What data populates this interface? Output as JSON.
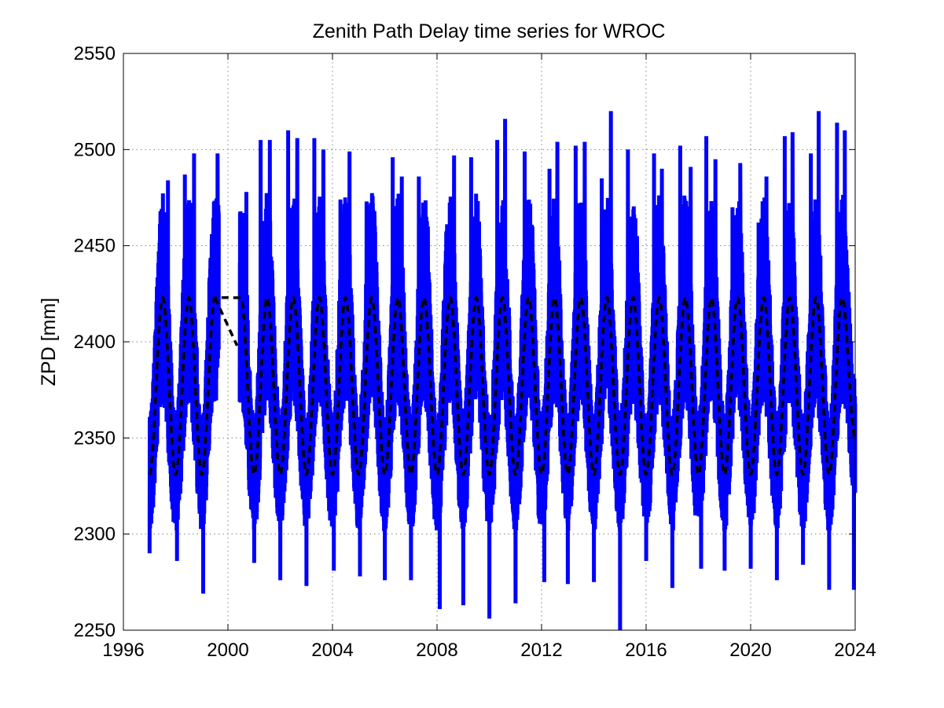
{
  "chart_data": {
    "type": "line",
    "title": "Zenith Path Delay time series for WROC",
    "xlabel": "",
    "ylabel": "ZPD [mm]",
    "xlim": [
      1996,
      2024
    ],
    "ylim": [
      2250,
      2550
    ],
    "xticks": [
      1996,
      2000,
      2004,
      2008,
      2012,
      2016,
      2020,
      2024
    ],
    "yticks": [
      2250,
      2300,
      2350,
      2400,
      2450,
      2500,
      2550
    ],
    "grid": true,
    "legend": "none",
    "colors": {
      "observed": "#0000ff",
      "model": "#000000"
    },
    "series": [
      {
        "style": "solid",
        "color": "#0000ff",
        "x": [
          1997.0,
          1997.35,
          1997.7,
          1998.05,
          1998.35,
          1998.7,
          1999.05,
          1999.35,
          1999.6,
          2000.5,
          2000.7,
          2001.0,
          2001.25,
          2001.6,
          2002.0,
          2002.3,
          2002.65,
          2003.0,
          2003.3,
          2003.65,
          2004.05,
          2004.3,
          2004.65,
          2005.05,
          2005.3,
          2005.6,
          2006.0,
          2006.3,
          2006.65,
          2007.0,
          2007.3,
          2007.65,
          2008.1,
          2008.35,
          2008.65,
          2009.0,
          2009.3,
          2009.6,
          2010.0,
          2010.3,
          2010.6,
          2011.0,
          2011.35,
          2011.65,
          2012.1,
          2012.3,
          2012.6,
          2013.0,
          2013.3,
          2013.65,
          2014.0,
          2014.3,
          2014.65,
          2015.0,
          2015.3,
          2015.65,
          2016.0,
          2016.3,
          2016.6,
          2017.0,
          2017.3,
          2017.7,
          2018.1,
          2018.3,
          2018.65,
          2019.0,
          2019.3,
          2019.6,
          2020.0,
          2020.3,
          2020.6,
          2021.0,
          2021.3,
          2021.6,
          2022.0,
          2022.3,
          2022.6,
          2023.0,
          2023.3,
          2023.6,
          2023.95
        ],
        "y": [
          2290,
          2447,
          2484,
          2286,
          2487,
          2498,
          2269,
          2433,
          2498,
          2371,
          2478,
          2285,
          2505,
          2505,
          2276,
          2510,
          2506,
          2273,
          2506,
          2500,
          2281,
          2474,
          2499,
          2278,
          2473,
          2468,
          2276,
          2496,
          2486,
          2276,
          2486,
          2460,
          2261,
          2457,
          2497,
          2263,
          2496,
          2457,
          2256,
          2505,
          2516,
          2264,
          2499,
          2460,
          2275,
          2490,
          2504,
          2274,
          2502,
          2504,
          2275,
          2485,
          2520,
          2250,
          2500,
          2455,
          2286,
          2498,
          2490,
          2272,
          2502,
          2491,
          2282,
          2507,
          2495,
          2281,
          2470,
          2493,
          2282,
          2462,
          2486,
          2276,
          2507,
          2509,
          2284,
          2498,
          2520,
          2271,
          2514,
          2510,
          2271
        ]
      },
      {
        "style": "dashed",
        "color": "#000000",
        "x": [
          1997.0,
          1997.5,
          1998.0,
          1998.5,
          1999.0,
          1999.5,
          2000.5,
          2001.0,
          2001.5,
          2002.0,
          2002.5,
          2003.0,
          2003.5,
          2004.0,
          2004.5,
          2005.0,
          2005.5,
          2006.0,
          2006.5,
          2007.0,
          2007.5,
          2008.0,
          2008.5,
          2009.0,
          2009.5,
          2010.0,
          2010.5,
          2011.0,
          2011.5,
          2012.0,
          2012.5,
          2013.0,
          2013.5,
          2014.0,
          2014.5,
          2015.0,
          2015.5,
          2016.0,
          2016.5,
          2017.0,
          2017.5,
          2018.0,
          2018.5,
          2019.0,
          2019.5,
          2020.0,
          2020.5,
          2021.0,
          2021.5,
          2022.0,
          2022.5,
          2023.0,
          2023.5,
          2024.0
        ],
        "y": [
          2331,
          2423,
          2331,
          2423,
          2331,
          2423,
          2423,
          2331,
          2423,
          2331,
          2423,
          2331,
          2423,
          2331,
          2423,
          2331,
          2423,
          2331,
          2423,
          2331,
          2423,
          2331,
          2423,
          2331,
          2423,
          2331,
          2423,
          2331,
          2423,
          2331,
          2423,
          2331,
          2423,
          2331,
          2423,
          2331,
          2423,
          2331,
          2423,
          2331,
          2423,
          2331,
          2423,
          2331,
          2423,
          2331,
          2423,
          2331,
          2423,
          2331,
          2423,
          2331,
          2423,
          2350
        ]
      }
    ]
  }
}
